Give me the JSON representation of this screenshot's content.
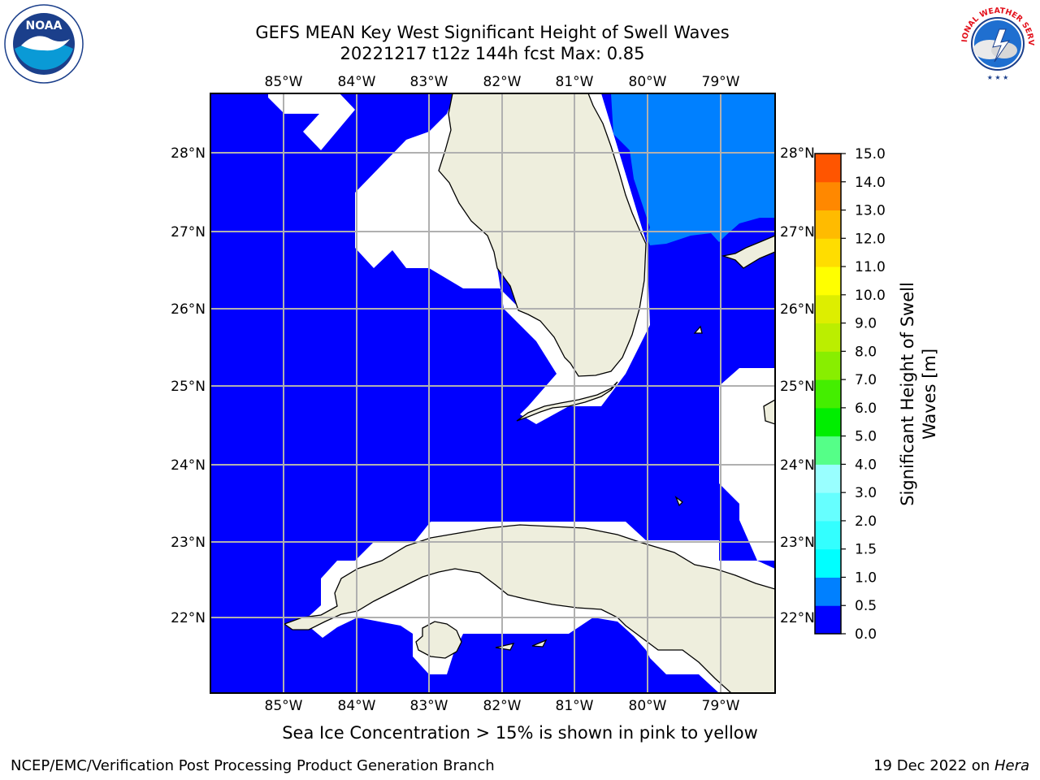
{
  "title": {
    "line1": "GEFS MEAN Key West Significant Height of Swell Waves",
    "line2": "20221217 t12z 144h fcst   Max: 0.85"
  },
  "map": {
    "lon_ticks": [
      "85°W",
      "84°W",
      "83°W",
      "82°W",
      "81°W",
      "80°W",
      "79°W"
    ],
    "lat_ticks": [
      "28°N",
      "27°N",
      "26°N",
      "25°N",
      "24°N",
      "23°N",
      "22°N"
    ],
    "colors": {
      "ocean_low": "#0000ff",
      "ocean_mid": "#0080ff",
      "land": "#eeeedd",
      "missing": "#ffffff",
      "grid": "#b0b0b0"
    }
  },
  "colorbar": {
    "label_line1": "Significant Height of Swell",
    "label_line2": "Waves [m]",
    "ticks": [
      "15.0",
      "14.0",
      "13.0",
      "12.0",
      "11.0",
      "10.0",
      "9.0",
      "8.0",
      "7.0",
      "6.0",
      "5.0",
      "4.0",
      "3.0",
      "2.0",
      "1.5",
      "1.0",
      "0.5",
      "0.0"
    ],
    "colors": [
      "#0000ff",
      "#0080ff",
      "#00ffff",
      "#33ffff",
      "#66ffff",
      "#99ffff",
      "#55ff88",
      "#00ee00",
      "#44ee00",
      "#88ee00",
      "#bbee00",
      "#ddee00",
      "#ffff00",
      "#ffdd00",
      "#ffbb00",
      "#ff8800",
      "#ff5500",
      "#ff2200",
      "#ff0000"
    ]
  },
  "logos": {
    "noaa_text": "NOAA",
    "nws_text": "NATIONAL WEATHER SERVICE"
  },
  "caption": "Sea Ice Concentration > 15% is shown in pink to yellow",
  "footer": {
    "left": "NCEP/EMC/Verification Post Processing Product Generation Branch",
    "right_date": "19 Dec 2022 on ",
    "right_host": "Hera"
  }
}
